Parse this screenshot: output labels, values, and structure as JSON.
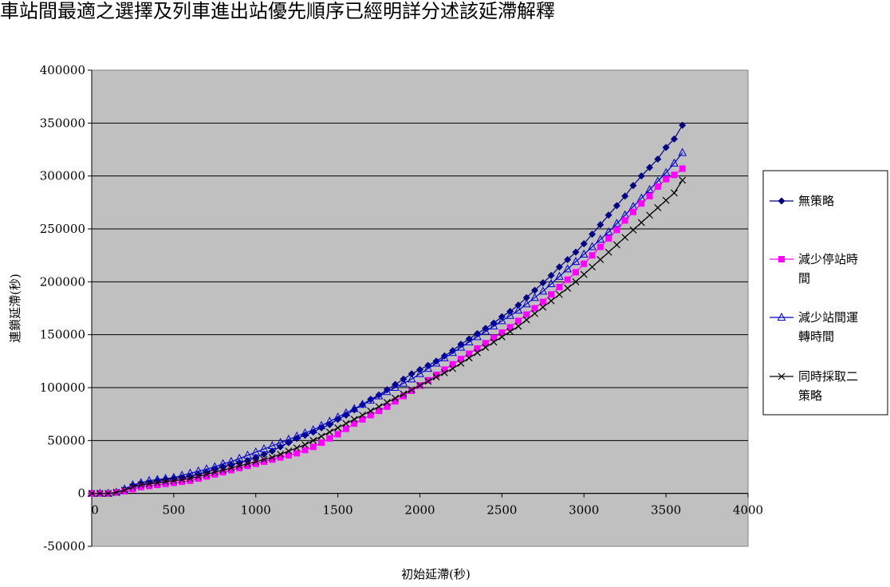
{
  "header": {
    "text": "車站間最適之選擇及列車進出站優先順序已經明詳分述該延滯解釋"
  },
  "chart_data": {
    "type": "line",
    "title": "",
    "xlabel": "初始延滯(秒)",
    "ylabel": "連鎖延滯(秒)",
    "xlim": [
      0,
      4000
    ],
    "ylim": [
      -50000,
      400000
    ],
    "x_ticks": [
      "0",
      "500",
      "1000",
      "1500",
      "2000",
      "2500",
      "3000",
      "3500",
      "4000"
    ],
    "y_ticks": [
      "-50000",
      "0",
      "50000",
      "100000",
      "150000",
      "200000",
      "250000",
      "300000",
      "350000",
      "400000"
    ],
    "grid": true,
    "background": "#c0c0c0",
    "legend_position": "right",
    "x": [
      0,
      50,
      100,
      150,
      200,
      250,
      300,
      350,
      400,
      450,
      500,
      550,
      600,
      650,
      700,
      750,
      800,
      850,
      900,
      950,
      1000,
      1050,
      1100,
      1150,
      1200,
      1250,
      1300,
      1350,
      1400,
      1450,
      1500,
      1550,
      1600,
      1650,
      1700,
      1750,
      1800,
      1850,
      1900,
      1950,
      2000,
      2050,
      2100,
      2150,
      2200,
      2250,
      2300,
      2350,
      2400,
      2450,
      2500,
      2550,
      2600,
      2650,
      2700,
      2750,
      2800,
      2850,
      2900,
      2950,
      3000,
      3050,
      3100,
      3150,
      3200,
      3250,
      3300,
      3350,
      3400,
      3450,
      3500,
      3550,
      3600
    ],
    "series": [
      {
        "name": "無策略",
        "color": "#000080",
        "marker": "diamond",
        "values": [
          0,
          0,
          0,
          1000,
          3000,
          7000,
          9000,
          10000,
          12000,
          13000,
          14000,
          15000,
          16000,
          18000,
          20000,
          23000,
          25000,
          27000,
          29000,
          31000,
          34000,
          37000,
          40000,
          44000,
          48000,
          52000,
          55000,
          58000,
          62000,
          65000,
          70000,
          74000,
          79000,
          84000,
          89000,
          93000,
          98000,
          103000,
          108000,
          113000,
          117000,
          121000,
          125000,
          130000,
          135000,
          141000,
          146000,
          151000,
          156000,
          161000,
          167000,
          172000,
          178000,
          185000,
          192000,
          199000,
          206000,
          214000,
          221000,
          228000,
          236000,
          245000,
          254000,
          263000,
          272000,
          281000,
          291000,
          300000,
          308000,
          316000,
          327000,
          335000,
          348000
        ]
      },
      {
        "name": "減少停站時間",
        "color": "#ff00ff",
        "marker": "square",
        "values": [
          0,
          0,
          0,
          1000,
          2000,
          4000,
          6000,
          7000,
          8000,
          9000,
          10000,
          11000,
          12000,
          14000,
          16000,
          18000,
          20000,
          22000,
          24000,
          26000,
          28000,
          30000,
          32000,
          34000,
          36000,
          38000,
          41000,
          44000,
          48000,
          52000,
          56000,
          61000,
          66000,
          70000,
          74000,
          78000,
          82000,
          87000,
          92000,
          97000,
          102000,
          107000,
          112000,
          117000,
          122000,
          127000,
          132000,
          137000,
          142000,
          147000,
          152000,
          157000,
          163000,
          169000,
          175000,
          181000,
          188000,
          195000,
          202000,
          209000,
          217000,
          225000,
          233000,
          241000,
          249000,
          258000,
          266000,
          274000,
          281000,
          290000,
          297000,
          301000,
          307000
        ]
      },
      {
        "name": "減少站間運轉時間",
        "color": "#0000cc",
        "marker": "triangle",
        "values": [
          0,
          0,
          0,
          1000,
          4000,
          8000,
          10000,
          12000,
          13000,
          14000,
          15000,
          17000,
          19000,
          21000,
          23000,
          25000,
          28000,
          30000,
          33000,
          36000,
          39000,
          42000,
          45000,
          48000,
          51000,
          54000,
          57000,
          60000,
          64000,
          68000,
          72000,
          76000,
          80000,
          84000,
          88000,
          92000,
          96000,
          100000,
          104000,
          108000,
          113000,
          118000,
          123000,
          128000,
          133000,
          138000,
          143000,
          148000,
          153000,
          158000,
          163000,
          168000,
          173000,
          179000,
          185000,
          191000,
          198000,
          205000,
          212000,
          219000,
          226000,
          233000,
          240000,
          247000,
          255000,
          263000,
          271000,
          279000,
          287000,
          295000,
          303000,
          312000,
          322000
        ]
      },
      {
        "name": "同時採取二策略",
        "color": "#000000",
        "marker": "x",
        "values": [
          0,
          0,
          0,
          1000,
          3000,
          6000,
          8000,
          9000,
          10000,
          11000,
          12000,
          13000,
          14000,
          16000,
          18000,
          20000,
          22000,
          24000,
          26000,
          28000,
          30000,
          32000,
          34000,
          37000,
          40000,
          43000,
          46000,
          50000,
          54000,
          58000,
          62000,
          66000,
          70000,
          74000,
          78000,
          82000,
          86000,
          90000,
          94000,
          98000,
          102000,
          106000,
          110000,
          114000,
          118000,
          123000,
          128000,
          133000,
          138000,
          143000,
          148000,
          153000,
          158000,
          164000,
          170000,
          176000,
          182000,
          188000,
          194000,
          200000,
          207000,
          214000,
          221000,
          228000,
          235000,
          242000,
          249000,
          256000,
          263000,
          270000,
          277000,
          284000,
          296000
        ]
      }
    ],
    "legend_labels": [
      [
        "無策略"
      ],
      [
        "減少停站時",
        "間"
      ],
      [
        "減少站間運",
        "轉時間"
      ],
      [
        "同時採取二",
        "策略"
      ]
    ]
  }
}
